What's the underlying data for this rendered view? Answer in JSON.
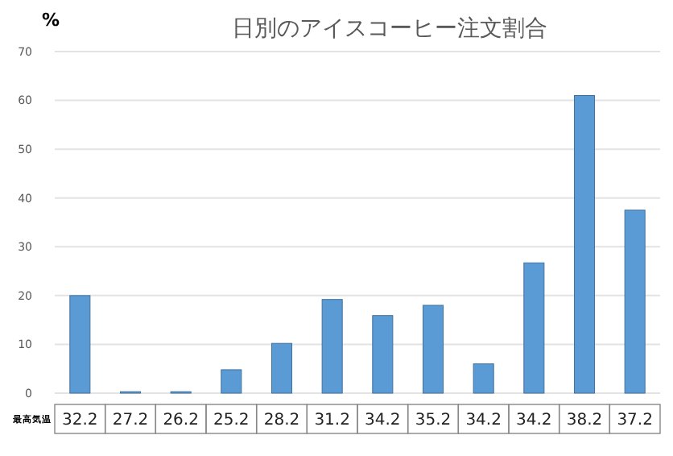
{
  "chart_data": {
    "type": "bar",
    "title": "日別のアイスコーヒー注文割合",
    "ylabel": "%",
    "xlabel": "最高気温",
    "categories": [
      "32.2",
      "27.2",
      "26.2",
      "25.2",
      "28.2",
      "31.2",
      "34.2",
      "35.2",
      "34.2",
      "34.2",
      "38.2",
      "37.2"
    ],
    "values": [
      20,
      0.3,
      0.3,
      4.8,
      10.2,
      19.2,
      15.9,
      18,
      6,
      26.7,
      61,
      37.5
    ],
    "color": "#5b9bd5",
    "ylim": [
      0,
      70
    ],
    "yticks": [
      0,
      10,
      20,
      30,
      40,
      50,
      60,
      70
    ],
    "grid": "y"
  }
}
